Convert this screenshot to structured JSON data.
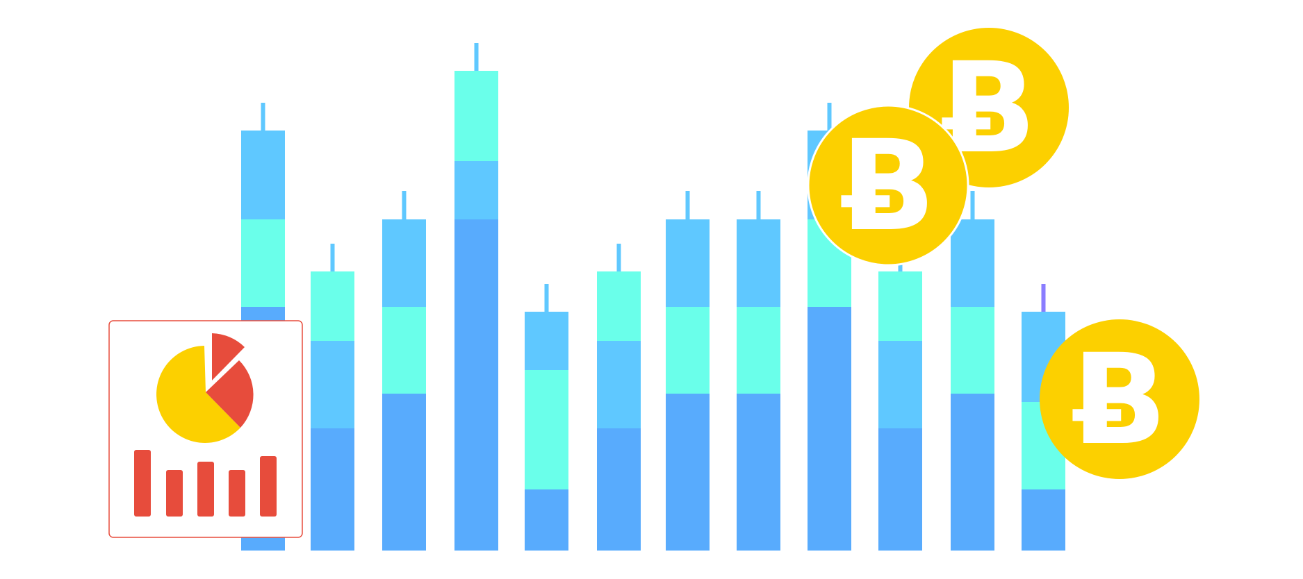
{
  "colors": {
    "background": "#ffffff",
    "segment_dark": "#58abfd",
    "segment_mid": "#5fc8ff",
    "segment_teal": "#6affea",
    "wick": "#5fc8ff",
    "wick_purple": "#8a7dff",
    "coin": "#fcd000",
    "coin_glyph": "#ffffff",
    "report_accent": "#e74c3c",
    "report_pie_yellow": "#fcd000"
  },
  "icons": [
    "report-card-icon",
    "pie-chart-icon",
    "bar-chart-icon",
    "bitcoin-coin-icon"
  ],
  "coin_symbol": "Ƀ"
}
